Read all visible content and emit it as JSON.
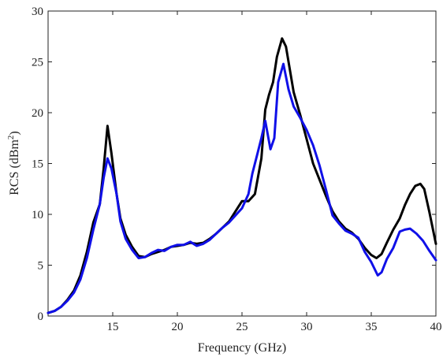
{
  "chart_data": {
    "type": "line",
    "xlabel": "Frequency (GHz)",
    "ylabel": {
      "base": "RCS (dBm",
      "sup": "2",
      "end": ")"
    },
    "xlim": [
      10,
      40
    ],
    "ylim": [
      0,
      30
    ],
    "x_ticks": [
      15,
      20,
      25,
      30,
      35,
      40
    ],
    "y_ticks": [
      0,
      5,
      10,
      15,
      20,
      25,
      30
    ],
    "grid": false,
    "series": [
      {
        "color": "#000000",
        "points": [
          [
            10,
            0.3
          ],
          [
            10.5,
            0.5
          ],
          [
            11,
            0.9
          ],
          [
            11.5,
            1.6
          ],
          [
            12,
            2.5
          ],
          [
            12.5,
            4.0
          ],
          [
            13,
            6.3
          ],
          [
            13.5,
            9.2
          ],
          [
            14,
            11.0
          ],
          [
            14.3,
            14.5
          ],
          [
            14.6,
            18.7
          ],
          [
            14.9,
            16.0
          ],
          [
            15.3,
            12.0
          ],
          [
            15.6,
            9.6
          ],
          [
            16,
            8.0
          ],
          [
            16.5,
            6.8
          ],
          [
            17,
            5.9
          ],
          [
            17.5,
            5.8
          ],
          [
            18,
            6.1
          ],
          [
            18.5,
            6.3
          ],
          [
            19,
            6.5
          ],
          [
            19.5,
            6.8
          ],
          [
            20,
            6.9
          ],
          [
            20.5,
            7.0
          ],
          [
            21,
            7.2
          ],
          [
            21.5,
            7.1
          ],
          [
            22,
            7.2
          ],
          [
            22.5,
            7.6
          ],
          [
            23,
            8.1
          ],
          [
            23.5,
            8.7
          ],
          [
            24,
            9.3
          ],
          [
            24.5,
            10.3
          ],
          [
            25,
            11.3
          ],
          [
            25.5,
            11.3
          ],
          [
            26,
            12.0
          ],
          [
            26.5,
            15.5
          ],
          [
            26.8,
            20.3
          ],
          [
            27.1,
            21.8
          ],
          [
            27.4,
            23.0
          ],
          [
            27.7,
            25.5
          ],
          [
            28.1,
            27.3
          ],
          [
            28.4,
            26.5
          ],
          [
            29,
            22.0
          ],
          [
            29.5,
            19.8
          ],
          [
            30,
            17.4
          ],
          [
            30.5,
            15.0
          ],
          [
            31,
            13.4
          ],
          [
            31.5,
            11.8
          ],
          [
            32,
            10.3
          ],
          [
            32.5,
            9.3
          ],
          [
            33,
            8.6
          ],
          [
            33.5,
            8.2
          ],
          [
            34,
            7.6
          ],
          [
            34.5,
            6.7
          ],
          [
            35,
            6.0
          ],
          [
            35.4,
            5.7
          ],
          [
            35.8,
            6.1
          ],
          [
            36.2,
            7.2
          ],
          [
            36.7,
            8.5
          ],
          [
            37.2,
            9.6
          ],
          [
            37.6,
            10.9
          ],
          [
            38,
            12.0
          ],
          [
            38.4,
            12.8
          ],
          [
            38.8,
            13.0
          ],
          [
            39.1,
            12.5
          ],
          [
            39.5,
            10.2
          ],
          [
            40,
            7.1
          ]
        ]
      },
      {
        "color": "#1010e8",
        "points": [
          [
            10,
            0.3
          ],
          [
            10.5,
            0.5
          ],
          [
            11,
            0.9
          ],
          [
            11.5,
            1.5
          ],
          [
            12,
            2.3
          ],
          [
            12.5,
            3.6
          ],
          [
            13,
            5.7
          ],
          [
            13.5,
            8.5
          ],
          [
            14,
            11.0
          ],
          [
            14.3,
            13.6
          ],
          [
            14.6,
            15.5
          ],
          [
            14.9,
            14.5
          ],
          [
            15.3,
            12.0
          ],
          [
            15.6,
            9.3
          ],
          [
            16,
            7.6
          ],
          [
            16.5,
            6.5
          ],
          [
            17,
            5.7
          ],
          [
            17.5,
            5.8
          ],
          [
            18,
            6.2
          ],
          [
            18.5,
            6.5
          ],
          [
            19,
            6.4
          ],
          [
            19.5,
            6.8
          ],
          [
            20,
            7.0
          ],
          [
            20.5,
            7.0
          ],
          [
            21,
            7.3
          ],
          [
            21.5,
            6.9
          ],
          [
            22,
            7.1
          ],
          [
            22.5,
            7.5
          ],
          [
            23,
            8.1
          ],
          [
            23.5,
            8.7
          ],
          [
            24,
            9.2
          ],
          [
            24.5,
            9.9
          ],
          [
            25,
            10.6
          ],
          [
            25.5,
            12.0
          ],
          [
            25.8,
            14.0
          ],
          [
            26.2,
            16.0
          ],
          [
            26.5,
            17.5
          ],
          [
            26.8,
            19.2
          ],
          [
            27.2,
            16.4
          ],
          [
            27.5,
            17.5
          ],
          [
            27.8,
            23.0
          ],
          [
            28.2,
            24.8
          ],
          [
            28.6,
            22.3
          ],
          [
            29,
            20.6
          ],
          [
            29.5,
            19.5
          ],
          [
            30,
            18.3
          ],
          [
            30.5,
            16.8
          ],
          [
            31,
            14.8
          ],
          [
            31.5,
            12.4
          ],
          [
            32,
            9.9
          ],
          [
            32.5,
            9.1
          ],
          [
            33,
            8.4
          ],
          [
            33.5,
            8.1
          ],
          [
            34,
            7.7
          ],
          [
            34.5,
            6.3
          ],
          [
            35,
            5.3
          ],
          [
            35.5,
            4.0
          ],
          [
            35.8,
            4.3
          ],
          [
            36.2,
            5.6
          ],
          [
            36.7,
            6.7
          ],
          [
            37.2,
            8.3
          ],
          [
            37.6,
            8.5
          ],
          [
            38,
            8.6
          ],
          [
            38.5,
            8.1
          ],
          [
            39,
            7.4
          ],
          [
            39.5,
            6.4
          ],
          [
            40,
            5.5
          ]
        ]
      }
    ]
  }
}
